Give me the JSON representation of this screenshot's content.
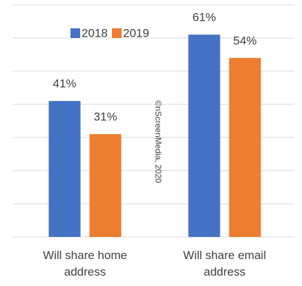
{
  "chart_data": {
    "type": "bar",
    "categories": [
      "Will share home address",
      "Will share email address"
    ],
    "series": [
      {
        "name": "2018",
        "color": "#4472c4",
        "values": [
          41,
          61
        ],
        "value_labels": [
          "41%",
          "61%"
        ]
      },
      {
        "name": "2019",
        "color": "#ed7d31",
        "values": [
          31,
          54
        ],
        "value_labels": [
          "31%",
          "54%"
        ]
      }
    ],
    "ylim": [
      0,
      70
    ],
    "yticks": [
      0,
      10,
      20,
      30,
      40,
      50,
      60,
      70
    ],
    "grid": true,
    "legend": "top-left",
    "annotation": "©nScreenMedia, 2020"
  }
}
